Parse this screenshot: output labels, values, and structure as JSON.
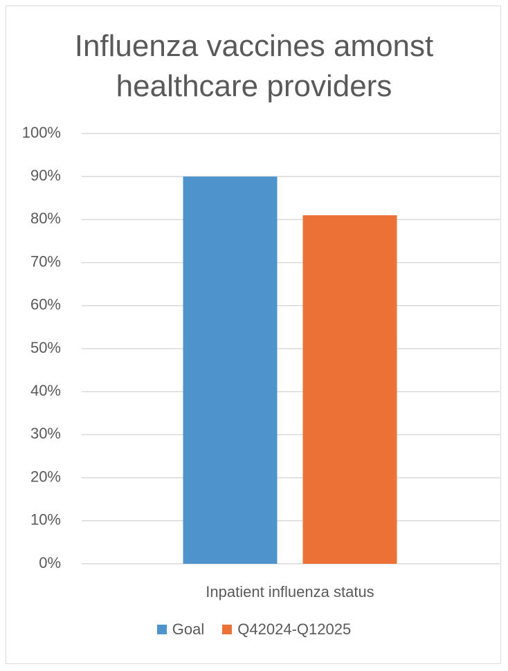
{
  "chart_data": {
    "type": "bar",
    "title_lines": [
      "Influenza vaccines amonst",
      "healthcare providers"
    ],
    "categories": [
      "Inpatient influenza status"
    ],
    "series": [
      {
        "name": "Goal",
        "values": [
          0.9
        ],
        "color": "#4F93CC"
      },
      {
        "name": "Q42024-Q12025",
        "values": [
          0.81
        ],
        "color": "#EB7136"
      }
    ],
    "ylim": [
      0,
      1
    ],
    "yticks": [
      0,
      0.1,
      0.2,
      0.3,
      0.4,
      0.5,
      0.6,
      0.7,
      0.8,
      0.9,
      1.0
    ],
    "ytick_labels": [
      "0%",
      "10%",
      "20%",
      "30%",
      "40%",
      "50%",
      "60%",
      "70%",
      "80%",
      "90%",
      "100%"
    ],
    "xlabel": "",
    "ylabel": "",
    "grid": true,
    "legend_position": "bottom",
    "gridline_color": "#d9d9d9"
  }
}
